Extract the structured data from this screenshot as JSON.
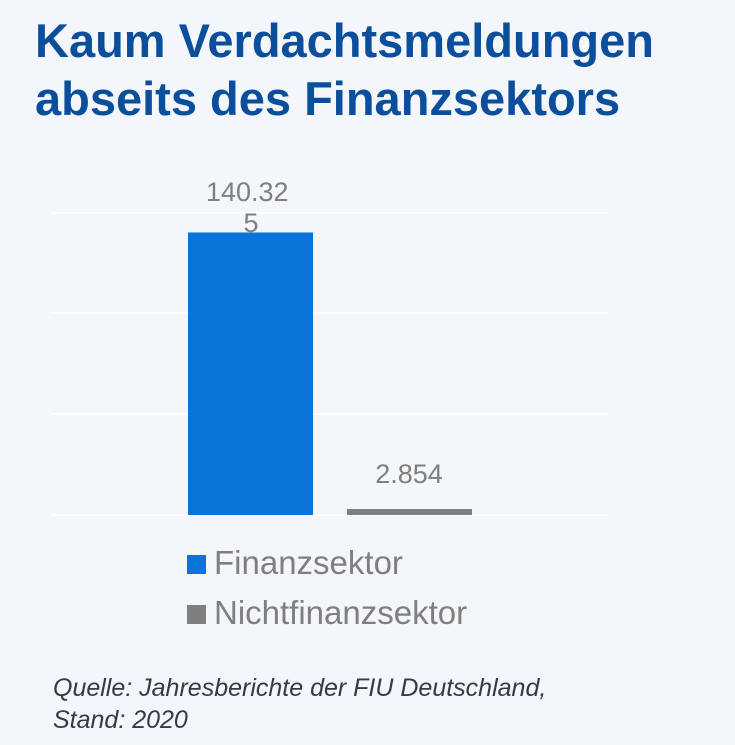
{
  "title_line1": "Kaum Verdachtsmeldungen",
  "title_line2": "abseits des Finanzsektors",
  "colors": {
    "title": "#0b4f9c",
    "finanz": "#0a74da",
    "nichtfinanz": "#7f7f7f",
    "grid": "#ffffff",
    "background": "#f3f6fa"
  },
  "chart_data": {
    "type": "bar",
    "series": [
      {
        "name": "Finanzsektor",
        "value": 140325,
        "label_line1": "140.32",
        "label_line2": "5",
        "color": "#0a74da"
      },
      {
        "name": "Nichtfinanzsektor",
        "value": 2854,
        "label_line1": "2.854",
        "color": "#7f7f7f"
      }
    ],
    "ylim": [
      0,
      150000
    ],
    "grid": true,
    "legend": "bottom"
  },
  "legend": {
    "items": [
      {
        "label": "Finanzsektor",
        "color": "#0a74da"
      },
      {
        "label": "Nichtfinanzsektor",
        "color": "#7f7f7f"
      }
    ]
  },
  "source": {
    "line1": "Quelle: Jahresberichte der FIU Deutschland,",
    "line2": "Stand: 2020"
  }
}
